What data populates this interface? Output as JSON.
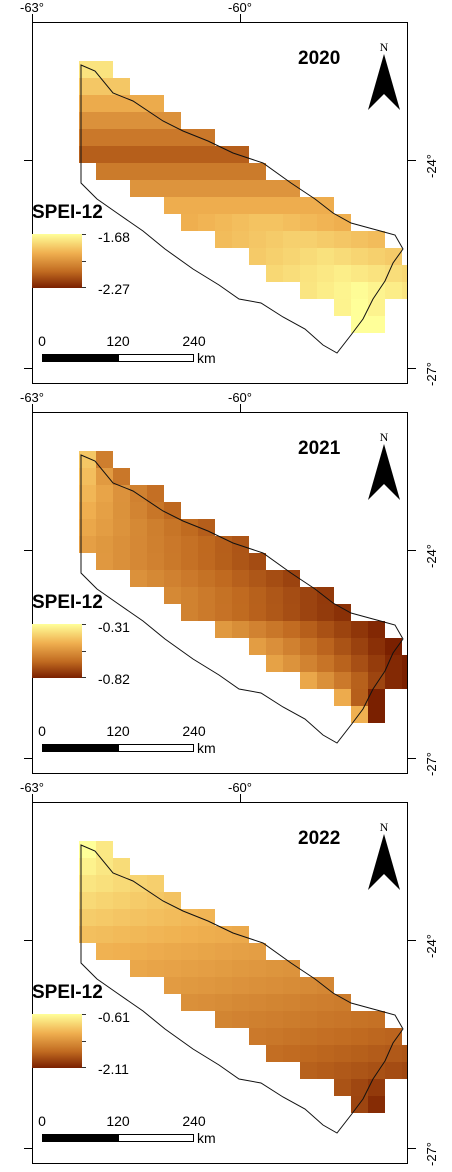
{
  "panels": [
    {
      "year": "2020",
      "legend": {
        "title": "SPEI-12",
        "max": "-1.68",
        "min": "-2.27"
      },
      "lon_labels": [
        "-63°",
        "-60°"
      ],
      "lat_labels": [
        "-24°",
        "-27°"
      ],
      "north_label": "N",
      "scalebar": {
        "labels": [
          "0",
          "120",
          "240"
        ],
        "unit": "km"
      },
      "colors": {
        "high": "#ffff99",
        "low": "#7a2000"
      },
      "pattern": "dark-band-center"
    },
    {
      "year": "2021",
      "legend": {
        "title": "SPEI-12",
        "max": "-0.31",
        "min": "-0.82"
      },
      "lon_labels": [
        "-63°",
        "-60°"
      ],
      "lat_labels": [
        "-24°",
        "-27°"
      ],
      "north_label": "N",
      "scalebar": {
        "labels": [
          "0",
          "120",
          "240"
        ],
        "unit": "km"
      },
      "colors": {
        "high": "#ffff99",
        "low": "#7a2000"
      },
      "pattern": "dark-south-light-east"
    },
    {
      "year": "2022",
      "legend": {
        "title": "SPEI-12",
        "max": "-0.61",
        "min": "-2.11"
      },
      "lon_labels": [
        "-63°",
        "-60°"
      ],
      "lat_labels": [
        "-24°",
        "-27°"
      ],
      "north_label": "N",
      "scalebar": {
        "labels": [
          "0",
          "120",
          "240"
        ],
        "unit": "km"
      },
      "colors": {
        "high": "#ffff99",
        "low": "#7a2000"
      },
      "pattern": "light-west-dark-east"
    }
  ]
}
